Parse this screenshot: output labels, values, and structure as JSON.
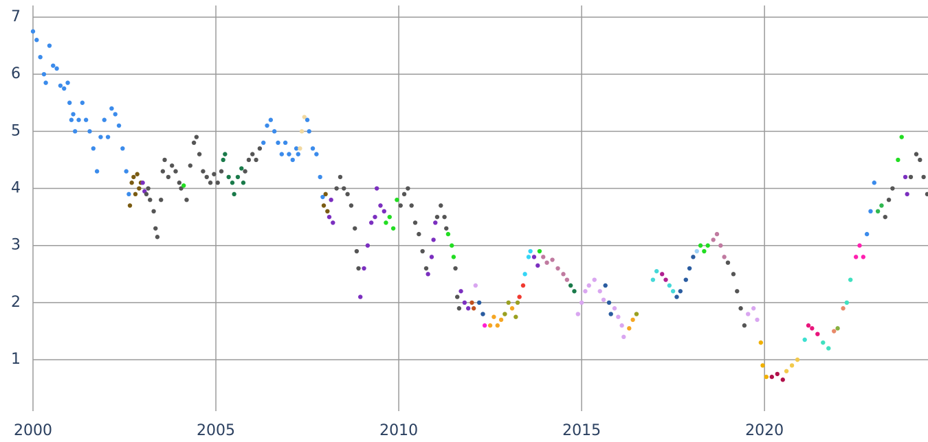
{
  "chart_data": {
    "type": "scatter",
    "xlim": [
      2000,
      2024.47
    ],
    "ylim": [
      0.1,
      7.3
    ],
    "xticks": [
      2000,
      2005,
      2010,
      2015,
      2020
    ],
    "yticks": [
      1,
      2,
      3,
      4,
      5,
      6,
      7
    ],
    "grid": true,
    "series": [
      {
        "color": "#3b8beb",
        "x": [
          2000.0,
          2000.1,
          2000.2,
          2000.3,
          2000.35,
          2000.45,
          2000.55,
          2000.65,
          2000.75,
          2000.85,
          2000.95,
          2001.0,
          2001.05,
          2001.1,
          2001.15,
          2001.25,
          2001.35,
          2001.45,
          2001.55,
          2001.65,
          2001.75,
          2001.85,
          2001.95,
          2002.05,
          2002.15,
          2002.25,
          2002.35,
          2002.45,
          2002.55,
          2002.62
        ],
        "values": [
          6.75,
          6.6,
          6.3,
          6.0,
          5.85,
          6.5,
          6.15,
          6.1,
          5.8,
          5.75,
          5.85,
          5.5,
          5.2,
          5.3,
          5.0,
          5.2,
          5.5,
          5.2,
          5.0,
          4.7,
          4.3,
          4.9,
          5.2,
          4.9,
          5.4,
          5.3,
          5.1,
          4.7,
          4.3,
          3.9
        ]
      },
      {
        "color": "#7a5b12",
        "x": [
          2002.65,
          2002.7,
          2002.75,
          2002.8,
          2002.85,
          2002.9,
          2002.95
        ],
        "values": [
          3.7,
          4.1,
          4.2,
          3.9,
          4.25,
          4.0,
          4.1
        ]
      },
      {
        "color": "#7b2fbf",
        "x": [
          2003.0,
          2003.05
        ],
        "values": [
          4.1,
          3.95
        ]
      },
      {
        "color": "#555555",
        "x": [
          2003.1,
          2003.15,
          2003.2,
          2003.3,
          2003.35,
          2003.4,
          2003.5,
          2003.55,
          2003.6,
          2003.7,
          2003.8,
          2003.9,
          2004.0,
          2004.05
        ],
        "values": [
          3.9,
          4.0,
          3.8,
          3.6,
          3.3,
          3.15,
          3.8,
          4.3,
          4.5,
          4.2,
          4.4,
          4.3,
          4.1,
          4.0
        ]
      },
      {
        "color": "#22dd22",
        "x": [
          2004.12
        ],
        "values": [
          4.05
        ]
      },
      {
        "color": "#555555",
        "x": [
          2004.2,
          2004.3,
          2004.4,
          2004.47,
          2004.55,
          2004.65,
          2004.75,
          2004.85,
          2004.95,
          2005.05,
          2005.15
        ],
        "values": [
          3.8,
          4.4,
          4.8,
          4.9,
          4.6,
          4.3,
          4.2,
          4.1,
          4.25,
          4.1,
          4.3
        ]
      },
      {
        "color": "#1a7a4a",
        "x": [
          2005.2,
          2005.25,
          2005.35,
          2005.45,
          2005.5,
          2005.6,
          2005.7,
          2005.75
        ],
        "values": [
          4.5,
          4.6,
          4.2,
          4.1,
          3.9,
          4.2,
          4.35,
          4.1
        ]
      },
      {
        "color": "#555555",
        "x": [
          2005.8,
          2005.9,
          2006.0,
          2006.1,
          2006.2
        ],
        "values": [
          4.3,
          4.5,
          4.6,
          4.5,
          4.7
        ]
      },
      {
        "color": "#3b8beb",
        "x": [
          2006.3,
          2006.4,
          2006.5,
          2006.6,
          2006.7,
          2006.8,
          2006.9,
          2007.0,
          2007.1,
          2007.2,
          2007.25
        ],
        "values": [
          4.8,
          5.1,
          5.2,
          5.0,
          4.8,
          4.6,
          4.8,
          4.6,
          4.5,
          4.7,
          4.6
        ]
      },
      {
        "color": "#f2d9a0",
        "x": [
          2007.3,
          2007.35,
          2007.42
        ],
        "values": [
          4.7,
          5.0,
          5.25
        ]
      },
      {
        "color": "#3b8beb",
        "x": [
          2007.5,
          2007.55,
          2007.65,
          2007.75,
          2007.85,
          2007.92
        ],
        "values": [
          5.2,
          5.0,
          4.7,
          4.6,
          4.2,
          3.85
        ]
      },
      {
        "color": "#7a5b12",
        "x": [
          2007.95,
          2008.0,
          2008.05
        ],
        "values": [
          3.7,
          3.9,
          3.6
        ]
      },
      {
        "color": "#7b2fbf",
        "x": [
          2008.1,
          2008.15,
          2008.2
        ],
        "values": [
          3.5,
          3.8,
          3.4
        ]
      },
      {
        "color": "#555555",
        "x": [
          2008.3,
          2008.4,
          2008.5,
          2008.6,
          2008.7,
          2008.8,
          2008.85,
          2008.9
        ],
        "values": [
          4.0,
          4.2,
          4.0,
          3.9,
          3.7,
          3.3,
          2.9,
          2.6
        ]
      },
      {
        "color": "#7b2fbf",
        "x": [
          2008.95,
          2009.05,
          2009.15,
          2009.25,
          2009.35,
          2009.4,
          2009.5,
          2009.6
        ],
        "values": [
          2.1,
          2.6,
          3.0,
          3.4,
          3.5,
          4.0,
          3.7,
          3.6
        ]
      },
      {
        "color": "#22dd22",
        "x": [
          2009.65,
          2009.75,
          2009.85,
          2009.95
        ],
        "values": [
          3.4,
          3.5,
          3.3,
          3.8
        ]
      },
      {
        "color": "#555555",
        "x": [
          2010.05,
          2010.15,
          2010.25,
          2010.35,
          2010.45,
          2010.55,
          2010.65,
          2010.75
        ],
        "values": [
          3.7,
          3.9,
          4.0,
          3.7,
          3.4,
          3.2,
          2.9,
          2.6
        ]
      },
      {
        "color": "#7b2fbf",
        "x": [
          2010.8,
          2010.9,
          2010.95,
          2011.0
        ],
        "values": [
          2.5,
          2.8,
          3.1,
          3.4
        ]
      },
      {
        "color": "#555555",
        "x": [
          2011.05,
          2011.15,
          2011.25,
          2011.3
        ],
        "values": [
          3.5,
          3.7,
          3.5,
          3.3
        ]
      },
      {
        "color": "#22dd22",
        "x": [
          2011.35,
          2011.45,
          2011.5
        ],
        "values": [
          3.2,
          3.0,
          2.8
        ]
      },
      {
        "color": "#555555",
        "x": [
          2011.55,
          2011.6,
          2011.65
        ],
        "values": [
          2.6,
          2.1,
          1.9
        ]
      },
      {
        "color": "#7b2fbf",
        "x": [
          2011.7,
          2011.8,
          2011.9
        ],
        "values": [
          2.2,
          2.0,
          1.9
        ]
      },
      {
        "color": "#c0501e",
        "x": [
          2012.0,
          2012.05
        ],
        "values": [
          2.0,
          1.9
        ]
      },
      {
        "color": "#d9a6f0",
        "x": [
          2012.1
        ],
        "values": [
          2.3
        ]
      },
      {
        "color": "#2a5ca0",
        "x": [
          2012.2,
          2012.3
        ],
        "values": [
          2.0,
          1.8
        ]
      },
      {
        "color": "#ff1fd0",
        "x": [
          2012.35
        ],
        "values": [
          1.6
        ]
      },
      {
        "color": "#f5a623",
        "x": [
          2012.5,
          2012.6,
          2012.7,
          2012.8
        ],
        "values": [
          1.6,
          1.75,
          1.6,
          1.7
        ]
      },
      {
        "color": "#9aa020",
        "x": [
          2012.9,
          2013.0
        ],
        "values": [
          1.8,
          2.0
        ]
      },
      {
        "color": "#f5a623",
        "x": [
          2013.1
        ],
        "values": [
          1.9
        ]
      },
      {
        "color": "#9aa020",
        "x": [
          2013.2,
          2013.25
        ],
        "values": [
          1.75,
          2.0
        ]
      },
      {
        "color": "#f03a30",
        "x": [
          2013.3,
          2013.4
        ],
        "values": [
          2.1,
          2.3
        ]
      },
      {
        "color": "#35d5f5",
        "x": [
          2013.45,
          2013.55,
          2013.6
        ],
        "values": [
          2.5,
          2.8,
          2.9
        ]
      },
      {
        "color": "#7b2fbf",
        "x": [
          2013.7,
          2013.8
        ],
        "values": [
          2.8,
          2.65
        ]
      },
      {
        "color": "#22dd22",
        "x": [
          2013.85
        ],
        "values": [
          2.9
        ]
      },
      {
        "color": "#c07aa0",
        "x": [
          2013.95,
          2014.05,
          2014.2,
          2014.35,
          2014.5,
          2014.6
        ],
        "values": [
          2.8,
          2.7,
          2.75,
          2.6,
          2.5,
          2.4
        ]
      },
      {
        "color": "#1a7a4a",
        "x": [
          2014.7,
          2014.8
        ],
        "values": [
          2.3,
          2.2
        ]
      },
      {
        "color": "#d9a6f0",
        "x": [
          2014.9,
          2015.0,
          2015.1,
          2015.2,
          2015.35,
          2015.5,
          2015.6
        ],
        "values": [
          1.8,
          2.0,
          2.2,
          2.3,
          2.4,
          2.2,
          2.05
        ]
      },
      {
        "color": "#2a5ca0",
        "x": [
          2015.65,
          2015.75,
          2015.8
        ],
        "values": [
          2.3,
          2.0,
          1.8
        ]
      },
      {
        "color": "#d9a6f0",
        "x": [
          2015.9,
          2016.0,
          2016.1,
          2016.15
        ],
        "values": [
          1.9,
          1.75,
          1.6,
          1.4
        ]
      },
      {
        "color": "#f5a623",
        "x": [
          2016.3,
          2016.4
        ],
        "values": [
          1.55,
          1.7
        ]
      },
      {
        "color": "#9aa020",
        "x": [
          2016.5
        ],
        "values": [
          1.8
        ]
      },
      {
        "color": "#45d8d8",
        "x": [
          2016.95,
          2017.05
        ],
        "values": [
          2.4,
          2.55
        ]
      },
      {
        "color": "#b02090",
        "x": [
          2017.2,
          2017.3
        ],
        "values": [
          2.5,
          2.4
        ]
      },
      {
        "color": "#45d8d8",
        "x": [
          2017.4,
          2017.5
        ],
        "values": [
          2.3,
          2.2
        ]
      },
      {
        "color": "#2a5ca0",
        "x": [
          2017.6,
          2017.7,
          2017.85,
          2017.95,
          2018.05
        ],
        "values": [
          2.1,
          2.2,
          2.4,
          2.6,
          2.8
        ]
      },
      {
        "color": "#9ad0f5",
        "x": [
          2018.15
        ],
        "values": [
          2.9
        ]
      },
      {
        "color": "#22dd22",
        "x": [
          2018.25,
          2018.35,
          2018.45
        ],
        "values": [
          3.0,
          2.9,
          3.0
        ]
      },
      {
        "color": "#c07aa0",
        "x": [
          2018.6,
          2018.7,
          2018.8,
          2018.9
        ],
        "values": [
          3.1,
          3.2,
          3.0,
          2.8
        ]
      },
      {
        "color": "#555555",
        "x": [
          2019.0,
          2019.15,
          2019.25,
          2019.35,
          2019.45
        ],
        "values": [
          2.7,
          2.5,
          2.2,
          1.9,
          1.6
        ]
      },
      {
        "color": "#d9a6f0",
        "x": [
          2019.55,
          2019.7,
          2019.8
        ],
        "values": [
          1.8,
          1.9,
          1.7
        ]
      },
      {
        "color": "#f0b000",
        "x": [
          2019.9,
          2019.95,
          2020.05
        ],
        "values": [
          1.3,
          0.9,
          0.7
        ]
      },
      {
        "color": "#b0104a",
        "x": [
          2020.2,
          2020.35,
          2020.5
        ],
        "values": [
          0.7,
          0.75,
          0.65
        ]
      },
      {
        "color": "#f2c94c",
        "x": [
          2020.6,
          2020.75,
          2020.9
        ],
        "values": [
          0.8,
          0.9,
          1.0
        ]
      },
      {
        "color": "#3de0d0",
        "x": [
          2021.1
        ],
        "values": [
          1.35
        ]
      },
      {
        "color": "#e8157c",
        "x": [
          2021.2,
          2021.3,
          2021.45
        ],
        "values": [
          1.6,
          1.55,
          1.45
        ]
      },
      {
        "color": "#40e0c0",
        "x": [
          2021.6,
          2021.75
        ],
        "values": [
          1.3,
          1.2
        ]
      },
      {
        "color": "#e88a6a",
        "x": [
          2021.9
        ],
        "values": [
          1.5
        ]
      },
      {
        "color": "#88b040",
        "x": [
          2022.0
        ],
        "values": [
          1.55
        ]
      },
      {
        "color": "#e88a6a",
        "x": [
          2022.15
        ],
        "values": [
          1.9
        ]
      },
      {
        "color": "#40e0c0",
        "x": [
          2022.25,
          2022.35
        ],
        "values": [
          2.0,
          2.4
        ]
      },
      {
        "color": "#ff20b0",
        "x": [
          2022.5,
          2022.6,
          2022.7
        ],
        "values": [
          2.8,
          3.0,
          2.8
        ]
      },
      {
        "color": "#3b8beb",
        "x": [
          2022.8,
          2022.9,
          2023.0
        ],
        "values": [
          3.2,
          3.6,
          4.1
        ]
      },
      {
        "color": "#30b850",
        "x": [
          2023.1,
          2023.2
        ],
        "values": [
          3.6,
          3.7
        ]
      },
      {
        "color": "#555555",
        "x": [
          2023.3,
          2023.4,
          2023.5
        ],
        "values": [
          3.5,
          3.8,
          4.0
        ]
      },
      {
        "color": "#22dd22",
        "x": [
          2023.65,
          2023.75
        ],
        "values": [
          4.5,
          4.9
        ]
      },
      {
        "color": "#7b2fbf",
        "x": [
          2023.85,
          2023.9
        ],
        "values": [
          4.2,
          3.9
        ]
      },
      {
        "color": "#555555",
        "x": [
          2024.0,
          2024.15,
          2024.25,
          2024.35,
          2024.45
        ],
        "values": [
          4.2,
          4.6,
          4.5,
          4.2,
          3.9
        ]
      }
    ]
  }
}
